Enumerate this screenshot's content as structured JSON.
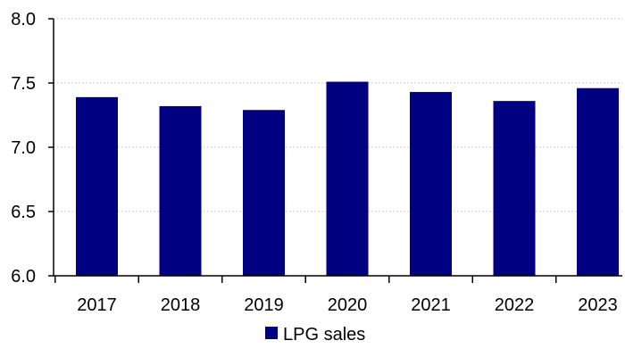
{
  "chart_data": {
    "type": "bar",
    "categories": [
      "2017",
      "2018",
      "2019",
      "2020",
      "2021",
      "2022",
      "2023"
    ],
    "series": [
      {
        "name": "LPG sales",
        "values": [
          7.39,
          7.32,
          7.29,
          7.51,
          7.43,
          7.36,
          7.46
        ]
      }
    ],
    "ylim": [
      6.0,
      8.0
    ],
    "yticks": [
      "6.0",
      "6.5",
      "7.0",
      "7.5",
      "8.0"
    ],
    "grid": true,
    "legend": "bottom",
    "colors": {
      "bar": "#000080",
      "grid": "#cccccc",
      "axis": "#000000"
    }
  }
}
